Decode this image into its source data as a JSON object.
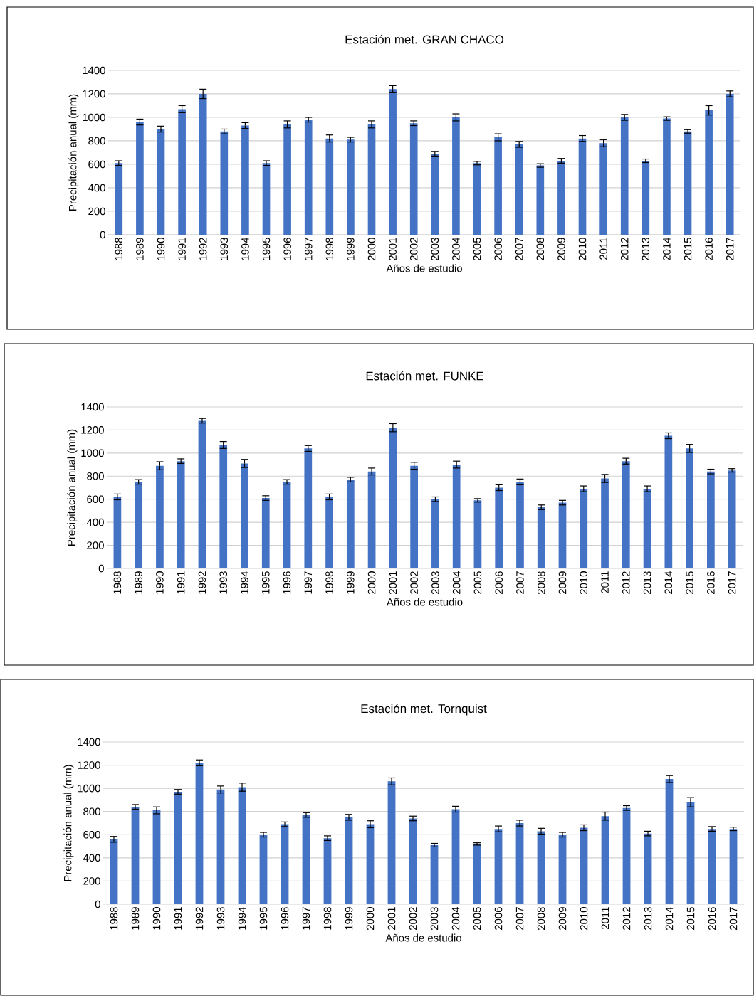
{
  "chart_data": [
    {
      "type": "bar",
      "title": "Estación met. GRAN CHACO",
      "xlabel": "Años de estudio",
      "ylabel": "Precipitación anual (mm)",
      "color": "#4472c4",
      "grid": "y",
      "ylim": [
        0,
        1400
      ],
      "yticks": [
        0,
        200,
        400,
        600,
        800,
        1000,
        1200,
        1400
      ],
      "categories": [
        "1988",
        "1989",
        "1990",
        "1991",
        "1992",
        "1993",
        "1994",
        "1995",
        "1996",
        "1997",
        "1998",
        "1999",
        "2000",
        "2001",
        "2002",
        "2003",
        "2004",
        "2005",
        "2006",
        "2007",
        "2008",
        "2009",
        "2010",
        "2011",
        "2012",
        "2013",
        "2014",
        "2015",
        "2016",
        "2017"
      ],
      "values": [
        610,
        960,
        900,
        1070,
        1200,
        880,
        930,
        610,
        940,
        980,
        820,
        810,
        940,
        1240,
        950,
        690,
        1000,
        610,
        830,
        770,
        590,
        630,
        820,
        780,
        1000,
        630,
        990,
        880,
        1060,
        1200
      ],
      "errors": [
        20,
        25,
        25,
        30,
        40,
        20,
        25,
        20,
        30,
        20,
        30,
        20,
        30,
        30,
        20,
        20,
        30,
        15,
        30,
        25,
        15,
        20,
        25,
        30,
        25,
        15,
        15,
        15,
        40,
        25
      ]
    },
    {
      "type": "bar",
      "title": "Estación met. FUNKE",
      "xlabel": "Años de estudio",
      "ylabel": "Precipitación anual (mm)",
      "color": "#4472c4",
      "grid": "y",
      "ylim": [
        0,
        1400
      ],
      "yticks": [
        0,
        200,
        400,
        600,
        800,
        1000,
        1200,
        1400
      ],
      "categories": [
        "1988",
        "1989",
        "1990",
        "1991",
        "1992",
        "1993",
        "1994",
        "1995",
        "1996",
        "1997",
        "1998",
        "1999",
        "2000",
        "2001",
        "2002",
        "2003",
        "2004",
        "2005",
        "2006",
        "2007",
        "2008",
        "2009",
        "2010",
        "2011",
        "2012",
        "2013",
        "2014",
        "2015",
        "2016",
        "2017"
      ],
      "values": [
        620,
        750,
        890,
        930,
        1280,
        1070,
        910,
        610,
        750,
        1040,
        620,
        770,
        840,
        1220,
        890,
        600,
        900,
        590,
        700,
        750,
        530,
        570,
        690,
        780,
        930,
        690,
        1150,
        1040,
        840,
        850
      ],
      "errors": [
        25,
        20,
        35,
        20,
        20,
        30,
        35,
        20,
        20,
        25,
        25,
        20,
        30,
        35,
        30,
        20,
        30,
        15,
        25,
        25,
        20,
        20,
        25,
        35,
        25,
        25,
        25,
        35,
        20,
        15
      ]
    },
    {
      "type": "bar",
      "title": "Estación met. Tornquist",
      "xlabel": "Años de estudio",
      "ylabel": "Precipitación anual (mm)",
      "color": "#4472c4",
      "grid": "y",
      "ylim": [
        0,
        1400
      ],
      "yticks": [
        0,
        200,
        400,
        600,
        800,
        1000,
        1200,
        1400
      ],
      "categories": [
        "1988",
        "1989",
        "1990",
        "1991",
        "1992",
        "1993",
        "1994",
        "1995",
        "1996",
        "1997",
        "1998",
        "1999",
        "2000",
        "2001",
        "2002",
        "2003",
        "2004",
        "2005",
        "2006",
        "2007",
        "2008",
        "2009",
        "2010",
        "2011",
        "2012",
        "2013",
        "2014",
        "2015",
        "2016",
        "2017"
      ],
      "values": [
        560,
        840,
        810,
        970,
        1220,
        990,
        1010,
        600,
        690,
        770,
        570,
        750,
        690,
        1060,
        740,
        510,
        820,
        520,
        650,
        700,
        630,
        600,
        660,
        760,
        830,
        610,
        1080,
        880,
        650,
        650
      ],
      "errors": [
        25,
        20,
        30,
        20,
        25,
        30,
        35,
        20,
        20,
        20,
        20,
        25,
        30,
        30,
        20,
        15,
        25,
        10,
        25,
        25,
        25,
        20,
        25,
        35,
        20,
        20,
        30,
        40,
        20,
        15
      ]
    }
  ]
}
